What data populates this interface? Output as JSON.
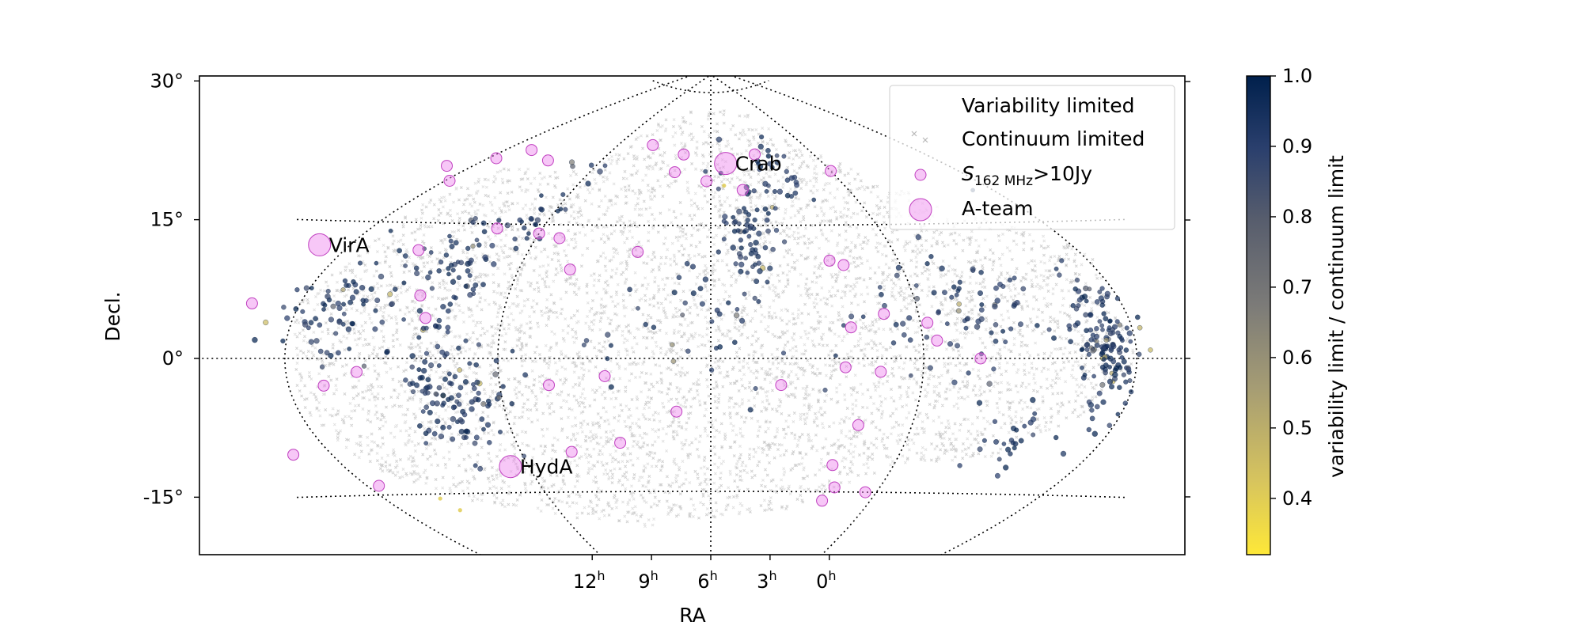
{
  "chart_data": {
    "type": "scatter",
    "projection": "all-sky curved grid (RA/Decl.)",
    "xlabel": "RA",
    "ylabel": "Decl.",
    "x_ticks": [
      {
        "value": 12,
        "label": "12",
        "unit": "h"
      },
      {
        "value": 9,
        "label": "9",
        "unit": "h"
      },
      {
        "value": 6,
        "label": "6",
        "unit": "h"
      },
      {
        "value": 3,
        "label": "3",
        "unit": "h"
      },
      {
        "value": 0,
        "label": "0",
        "unit": "h"
      }
    ],
    "y_ticks": [
      {
        "value": 30,
        "label": "30°"
      },
      {
        "value": 15,
        "label": "15°"
      },
      {
        "value": 0,
        "label": "0°"
      },
      {
        "value": -15,
        "label": "-15°"
      }
    ],
    "grid": true,
    "grid_style": "dotted",
    "colorbar": {
      "label": "variability limit / continuum limit",
      "min": 0.32,
      "max": 1.0,
      "ticks": [
        "1.0",
        "0.9",
        "0.8",
        "0.7",
        "0.6",
        "0.5",
        "0.4"
      ],
      "colormap": "cividis (reversed)",
      "color_high": "#00204c",
      "color_mid": "#7c7b78",
      "color_low": "#fee838"
    },
    "legend": {
      "placement": "top-right",
      "entries": [
        {
          "label": "Variability limited",
          "marker": "small blue dot"
        },
        {
          "label": "Continuum limited",
          "marker": "faint grey cross"
        },
        {
          "label_prefix": "S",
          "label_sub": "162 MHz",
          "label_suffix": ">10Jy",
          "marker": "pink circle"
        },
        {
          "label": "A-team",
          "marker": "large pink circle"
        }
      ]
    },
    "series": [
      {
        "name": "Continuum limited",
        "color": "#9a9a9a",
        "description": "dense field of faint grey crosses filling the survey footprint",
        "footprint_outline_ra_dec": [
          [
            11.3,
            21
          ],
          [
            9.0,
            21
          ],
          [
            8.3,
            27
          ],
          [
            6.2,
            29
          ],
          [
            4.2,
            28
          ],
          [
            3.2,
            24
          ],
          [
            1.5,
            17
          ],
          [
            -0.2,
            12
          ],
          [
            0.0,
            0
          ],
          [
            0.5,
            -6
          ],
          [
            1.5,
            -11
          ],
          [
            3.0,
            -12
          ],
          [
            4.5,
            -17
          ],
          [
            6.0,
            -18
          ],
          [
            7.5,
            -19
          ],
          [
            8.8,
            -18
          ],
          [
            9.5,
            -17
          ],
          [
            10.5,
            -16
          ],
          [
            11.6,
            -12
          ],
          [
            12.0,
            -5
          ],
          [
            12.1,
            6
          ],
          [
            11.7,
            17
          ]
        ]
      },
      {
        "name": "Variability limited",
        "color_by": "variability limit / continuum limit",
        "description": "small dots, mostly dark blue (ratio ~0.9-1.0), a few grey/yellow",
        "clusters": [
          {
            "ra": 11.5,
            "dec": 6.0,
            "spread_ra": 0.7,
            "spread_dec": 5.0,
            "weight": 70
          },
          {
            "ra": 10.1,
            "dec": 9.0,
            "spread_ra": 0.5,
            "spread_dec": 6.0,
            "weight": 70
          },
          {
            "ra": 9.8,
            "dec": -4.0,
            "spread_ra": 0.6,
            "spread_dec": 5.0,
            "weight": 110
          },
          {
            "ra": 9.3,
            "dec": 17.0,
            "spread_ra": 0.5,
            "spread_dec": 5.0,
            "weight": 30
          },
          {
            "ra": 5.3,
            "dec": 14.0,
            "spread_ra": 0.6,
            "spread_dec": 6.0,
            "weight": 70
          },
          {
            "ra": 4.4,
            "dec": 20.0,
            "spread_ra": 0.6,
            "spread_dec": 5.0,
            "weight": 30
          },
          {
            "ra": 0.4,
            "dec": 1.0,
            "spread_ra": 0.35,
            "spread_dec": 7.0,
            "weight": 150
          },
          {
            "ra": 2.0,
            "dec": 6.0,
            "spread_ra": 0.8,
            "spread_dec": 5.0,
            "weight": 50
          },
          {
            "ra": 1.4,
            "dec": -9.0,
            "spread_ra": 0.5,
            "spread_dec": 3.0,
            "weight": 25
          },
          {
            "ra": 6.5,
            "dec": 4.0,
            "spread_ra": 1.5,
            "spread_dec": 8.0,
            "weight": 40
          },
          {
            "ra": 3.0,
            "dec": 4.0,
            "spread_ra": 1.0,
            "spread_dec": 6.0,
            "weight": 30
          }
        ]
      },
      {
        "name": "S162 MHz > 10 Jy",
        "color": "#ee82ee",
        "points": [
          {
            "ra": 12.6,
            "dec": 21.0
          },
          {
            "ra": 11.8,
            "dec": 22.0
          },
          {
            "ra": 11.3,
            "dec": 23.0
          },
          {
            "ra": 10.4,
            "dec": 22.0
          },
          {
            "ra": 11.9,
            "dec": 19.5
          },
          {
            "ra": 12.7,
            "dec": 6.0
          },
          {
            "ra": 10.8,
            "dec": 12.0
          },
          {
            "ra": 10.3,
            "dec": 7.0
          },
          {
            "ra": 10.1,
            "dec": 4.5
          },
          {
            "ra": 11.0,
            "dec": -1.5
          },
          {
            "ra": 11.5,
            "dec": -3.0
          },
          {
            "ra": 12.6,
            "dec": -10.5
          },
          {
            "ra": 11.8,
            "dec": -14.0
          },
          {
            "ra": 9.8,
            "dec": 14.5
          },
          {
            "ra": 9.0,
            "dec": 14.0
          },
          {
            "ra": 8.6,
            "dec": 13.5
          },
          {
            "ra": 8.2,
            "dec": 10.0
          },
          {
            "ra": 7.9,
            "dec": 24.0
          },
          {
            "ra": 7.2,
            "dec": 12.0
          },
          {
            "ra": 6.8,
            "dec": 23.0
          },
          {
            "ra": 6.9,
            "dec": 21.0
          },
          {
            "ra": 6.1,
            "dec": 20.0
          },
          {
            "ra": 5.3,
            "dec": 19.0
          },
          {
            "ra": 4.7,
            "dec": 23.0
          },
          {
            "ra": 3.0,
            "dec": 21.0
          },
          {
            "ra": 4.1,
            "dec": 11.0
          },
          {
            "ra": 3.9,
            "dec": 10.5
          },
          {
            "ra": 4.0,
            "dec": 3.5
          },
          {
            "ra": 3.5,
            "dec": 5.0
          },
          {
            "ra": 2.9,
            "dec": 4.0
          },
          {
            "ra": 2.8,
            "dec": 2.0
          },
          {
            "ra": 2.2,
            "dec": 0.0
          },
          {
            "ra": 4.1,
            "dec": -1.0
          },
          {
            "ra": 3.6,
            "dec": -1.5
          },
          {
            "ra": 8.3,
            "dec": -3.0
          },
          {
            "ra": 7.5,
            "dec": -2.0
          },
          {
            "ra": 6.5,
            "dec": -6.0
          },
          {
            "ra": 3.8,
            "dec": -7.5
          },
          {
            "ra": 8.2,
            "dec": -10.5
          },
          {
            "ra": 7.4,
            "dec": -9.5
          },
          {
            "ra": 4.0,
            "dec": -12.0
          },
          {
            "ra": 3.8,
            "dec": -14.5
          },
          {
            "ra": 3.9,
            "dec": -16.0
          },
          {
            "ra": 3.2,
            "dec": -15.0
          },
          {
            "ra": 5.0,
            "dec": -3.0
          }
        ]
      },
      {
        "name": "A-team",
        "color": "#ee82ee",
        "points": [
          {
            "label": "VirA",
            "ra": 12.5,
            "dec": 12.4
          },
          {
            "label": "HydA",
            "ra": 9.3,
            "dec": -12.1
          },
          {
            "label": "Crab",
            "ra": 5.6,
            "dec": 22.0
          }
        ]
      }
    ]
  }
}
